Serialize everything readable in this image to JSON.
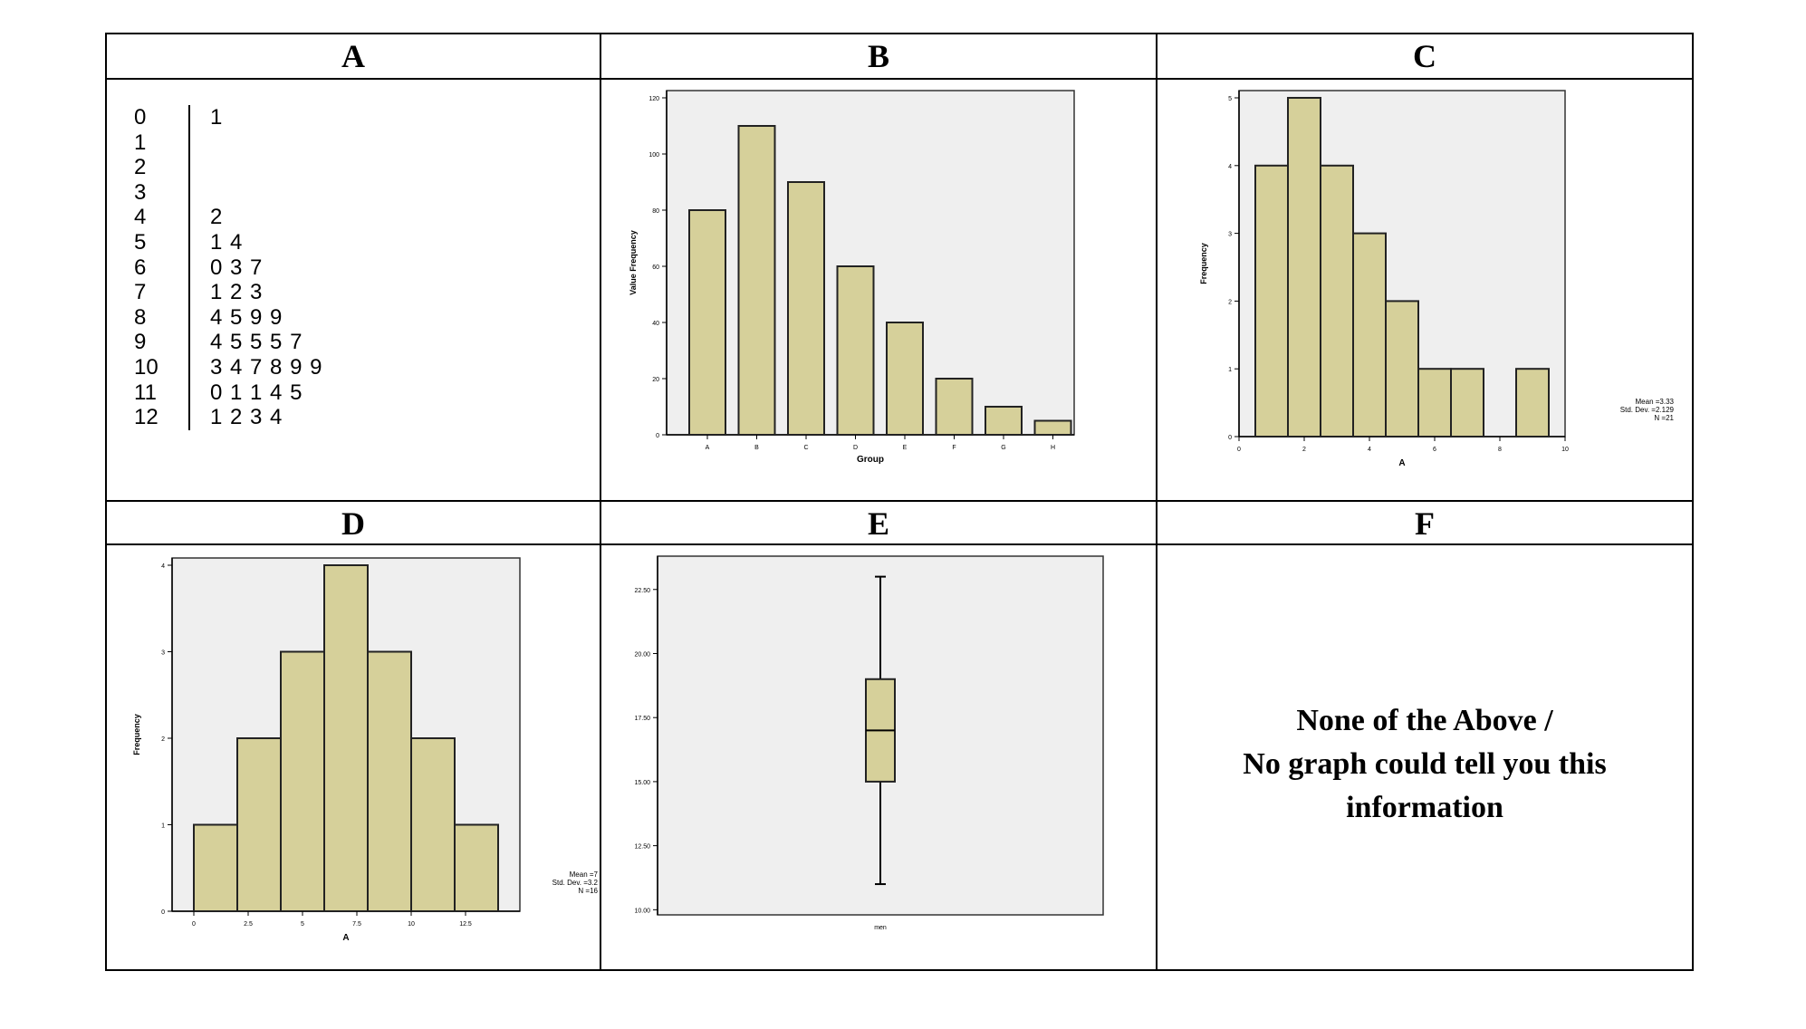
{
  "headers": {
    "a": "A",
    "b": "B",
    "c": "C",
    "d": "D",
    "e": "E",
    "f": "F"
  },
  "panel_a": {
    "rows": [
      {
        "stem": "0",
        "leaves": "1"
      },
      {
        "stem": "1",
        "leaves": ""
      },
      {
        "stem": "2",
        "leaves": ""
      },
      {
        "stem": "3",
        "leaves": ""
      },
      {
        "stem": "4",
        "leaves": "2"
      },
      {
        "stem": "5",
        "leaves": "1 4"
      },
      {
        "stem": "6",
        "leaves": "0 3 7"
      },
      {
        "stem": "7",
        "leaves": "1 2 3"
      },
      {
        "stem": "8",
        "leaves": "4 5 9 9"
      },
      {
        "stem": "9",
        "leaves": "4 5 5 5 7"
      },
      {
        "stem": "10",
        "leaves": "3 4 7 8 9 9"
      },
      {
        "stem": "11",
        "leaves": "0 1 1 4 5"
      },
      {
        "stem": "12",
        "leaves": "1 2 3 4"
      }
    ]
  },
  "panel_f": {
    "line1": "None of the Above /",
    "line2": "No graph could tell you this",
    "line3": "information"
  },
  "colors": {
    "bar_fill": "#d6d09a",
    "bar_stroke": "#222222",
    "plot_bg": "#efefef"
  },
  "chart_data": [
    {
      "id": "B",
      "type": "bar",
      "categories": [
        "A",
        "B",
        "C",
        "D",
        "E",
        "F",
        "G",
        "H"
      ],
      "values": [
        80,
        110,
        90,
        60,
        40,
        20,
        10,
        5
      ],
      "xlabel": "Group",
      "ylabel": "Value Frequency",
      "ylim": [
        0,
        120
      ],
      "yticks": [
        0,
        20,
        40,
        60,
        80,
        100,
        120
      ],
      "ytick_labels": [
        "0",
        "20",
        "40",
        "60",
        "80",
        "100",
        "120"
      ]
    },
    {
      "id": "C",
      "type": "bar",
      "histogram": true,
      "bins": [
        [
          0.5,
          1.5
        ],
        [
          1.5,
          2.5
        ],
        [
          2.5,
          3.5
        ],
        [
          3.5,
          4.5
        ],
        [
          4.5,
          5.5
        ],
        [
          5.5,
          6.5
        ],
        [
          6.5,
          7.5
        ],
        [
          7.5,
          8.5
        ],
        [
          8.5,
          9.5
        ]
      ],
      "values": [
        4,
        5,
        4,
        3,
        2,
        1,
        1,
        0,
        1
      ],
      "xlabel": "A",
      "ylabel": "Frequency",
      "xlim": [
        0,
        10
      ],
      "xticks": [
        0,
        2,
        4,
        6,
        8,
        10
      ],
      "xtick_labels": [
        "0",
        "2",
        "4",
        "6",
        "8",
        "10"
      ],
      "ylim": [
        0,
        5
      ],
      "yticks": [
        0,
        1,
        2,
        3,
        4,
        5
      ],
      "ytick_labels": [
        "0",
        "1",
        "2",
        "3",
        "4",
        "5"
      ],
      "stats": [
        "Mean =3.33",
        "Std. Dev. =2.129",
        "N =21"
      ]
    },
    {
      "id": "D",
      "type": "bar",
      "histogram": true,
      "bins": [
        [
          0,
          2
        ],
        [
          2,
          4
        ],
        [
          4,
          6
        ],
        [
          6,
          8
        ],
        [
          8,
          10
        ],
        [
          10,
          12
        ],
        [
          12,
          14
        ]
      ],
      "values": [
        1,
        2,
        3,
        4,
        3,
        2,
        1
      ],
      "xlabel": "A",
      "ylabel": "Frequency",
      "xlim": [
        -1,
        15
      ],
      "xticks": [
        0,
        2.5,
        5,
        7.5,
        10,
        12.5
      ],
      "xtick_labels": [
        "0",
        "2.5",
        "5",
        "7.5",
        "10",
        "12.5"
      ],
      "ylim": [
        0,
        4
      ],
      "yticks": [
        0,
        1,
        2,
        3,
        4
      ],
      "ytick_labels": [
        "0",
        "1",
        "2",
        "3",
        "4"
      ],
      "stats": [
        "Mean =7",
        "Std. Dev. =3.2",
        "N =16"
      ]
    },
    {
      "id": "E",
      "type": "box",
      "category": "men",
      "min": 11,
      "q1": 15,
      "median": 17,
      "q3": 19,
      "max": 23,
      "ylim": [
        9.8,
        23.8
      ],
      "yticks": [
        10,
        12.5,
        15,
        17.5,
        20,
        22.5
      ],
      "ytick_labels": [
        "10.00",
        "12.50",
        "15.00",
        "17.50",
        "20.00",
        "22.50"
      ]
    }
  ]
}
